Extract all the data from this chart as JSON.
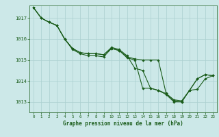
{
  "title": "Graphe pression niveau de la mer (hPa)",
  "background_color": "#cce8e8",
  "line_color": "#1a5c1a",
  "grid_color": "#aacfcf",
  "text_color": "#1a5c1a",
  "xlim": [
    -0.5,
    23.5
  ],
  "ylim": [
    1012.5,
    1017.6
  ],
  "yticks": [
    1013,
    1014,
    1015,
    1016,
    1017
  ],
  "xticks": [
    0,
    1,
    2,
    3,
    4,
    5,
    6,
    7,
    8,
    9,
    10,
    11,
    12,
    13,
    14,
    15,
    16,
    17,
    18,
    19,
    20,
    21,
    22,
    23
  ],
  "line1_x": [
    0,
    1,
    2,
    3,
    4,
    5,
    6,
    7,
    8,
    9,
    10,
    11,
    12,
    13,
    14,
    15,
    16,
    17,
    18,
    19,
    20,
    21,
    22,
    23
  ],
  "line1_y": [
    1017.5,
    1017.0,
    1016.8,
    1016.65,
    1016.0,
    1015.5,
    1015.3,
    1015.2,
    1015.2,
    1015.15,
    1015.55,
    1015.45,
    1015.1,
    1015.0,
    1013.65,
    1013.65,
    1013.55,
    1013.35,
    1013.0,
    1013.0,
    1013.55,
    1014.1,
    1014.3,
    1014.25
  ],
  "line2_x": [
    0,
    1,
    2,
    3,
    4,
    5,
    6,
    7,
    8,
    9,
    10,
    11,
    12,
    13,
    14,
    15,
    16,
    17,
    18,
    19,
    20,
    21,
    22,
    23
  ],
  "line2_y": [
    1017.5,
    1017.0,
    1016.8,
    1016.65,
    1016.0,
    1015.55,
    1015.35,
    1015.3,
    1015.3,
    1015.25,
    1015.6,
    1015.5,
    1015.2,
    1014.6,
    1014.5,
    1013.65,
    1013.55,
    1013.4,
    1013.05,
    1013.0,
    1013.55,
    1014.1,
    1014.3,
    1014.25
  ],
  "line3_x": [
    0,
    1,
    2,
    3,
    4,
    5,
    6,
    7,
    8,
    9,
    10,
    11,
    12,
    13,
    14,
    15,
    16,
    17,
    18,
    19,
    20,
    21,
    22,
    23
  ],
  "line3_y": [
    1017.5,
    1017.0,
    1016.8,
    1016.65,
    1016.0,
    1015.55,
    1015.35,
    1015.3,
    1015.3,
    1015.25,
    1015.55,
    1015.45,
    1015.15,
    1015.05,
    1015.0,
    1015.0,
    1015.0,
    1013.4,
    1013.1,
    1013.05,
    1013.55,
    1013.6,
    1014.1,
    1014.25
  ]
}
